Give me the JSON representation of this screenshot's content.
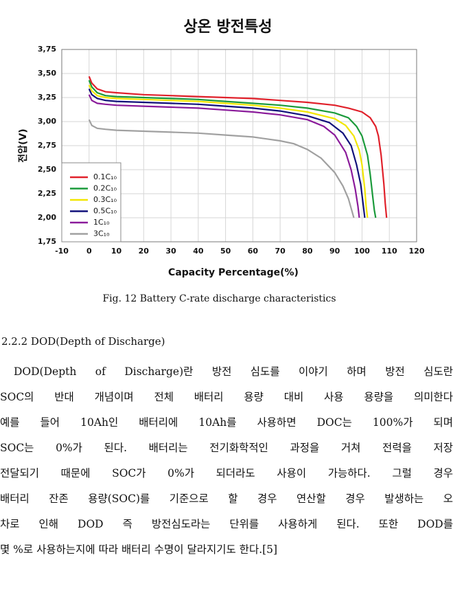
{
  "chart_data": {
    "type": "line",
    "title": "상온 방전특성",
    "y_label": "전압(V)",
    "x_label": "Capacity Percentage(%)",
    "xlim": [
      -10,
      120
    ],
    "xticks": [
      -10,
      0,
      10,
      20,
      30,
      40,
      50,
      60,
      70,
      80,
      90,
      100,
      110,
      120
    ],
    "ylim": [
      1.75,
      3.75
    ],
    "yticks": [
      {
        "value": 1.75,
        "label": "1,75"
      },
      {
        "value": 2,
        "label": "2,00"
      },
      {
        "value": 2.25,
        "label": "2,25"
      },
      {
        "value": 2.5,
        "label": "2,50"
      },
      {
        "value": 2.75,
        "label": "2,75"
      },
      {
        "value": 3,
        "label": "3,00"
      },
      {
        "value": 3.25,
        "label": "3,25"
      },
      {
        "value": 3.5,
        "label": "3,50"
      },
      {
        "value": 3.75,
        "label": "3,75"
      }
    ],
    "grid": true,
    "legend": "lower-left",
    "series": [
      {
        "name": "0.1C₁₀",
        "color": "#e0202a",
        "x": [
          0,
          1,
          3,
          6,
          10,
          20,
          30,
          40,
          50,
          60,
          70,
          80,
          90,
          95,
          100,
          103,
          105,
          106,
          107,
          108,
          108.5,
          109
        ],
        "values": [
          3.47,
          3.4,
          3.34,
          3.31,
          3.3,
          3.28,
          3.27,
          3.26,
          3.25,
          3.24,
          3.22,
          3.2,
          3.17,
          3.14,
          3.1,
          3.04,
          2.95,
          2.85,
          2.65,
          2.35,
          2.15,
          2.0
        ]
      },
      {
        "name": "0.2C₁₀",
        "color": "#1a9a3a",
        "x": [
          0,
          1,
          3,
          6,
          10,
          20,
          30,
          40,
          50,
          60,
          70,
          80,
          90,
          95,
          98,
          100,
          102,
          103,
          104,
          104.5,
          105
        ],
        "values": [
          3.43,
          3.36,
          3.3,
          3.27,
          3.26,
          3.25,
          3.24,
          3.23,
          3.21,
          3.19,
          3.17,
          3.14,
          3.09,
          3.04,
          2.95,
          2.85,
          2.65,
          2.45,
          2.2,
          2.08,
          2.0
        ]
      },
      {
        "name": "0.3C₁₀",
        "color": "#f2e600",
        "x": [
          0,
          1,
          3,
          6,
          10,
          20,
          30,
          40,
          50,
          60,
          70,
          80,
          90,
          94,
          97,
          99,
          100,
          101,
          101.5,
          102
        ],
        "values": [
          3.38,
          3.32,
          3.27,
          3.25,
          3.24,
          3.23,
          3.22,
          3.21,
          3.19,
          3.17,
          3.14,
          3.1,
          3.03,
          2.96,
          2.85,
          2.7,
          2.55,
          2.3,
          2.12,
          2.0
        ]
      },
      {
        "name": "0.5C₁₀",
        "color": "#10107a",
        "x": [
          0,
          1,
          3,
          6,
          10,
          20,
          30,
          40,
          50,
          60,
          70,
          80,
          88,
          93,
          96,
          98,
          99.5,
          100.5,
          101
        ],
        "values": [
          3.34,
          3.28,
          3.24,
          3.22,
          3.21,
          3.2,
          3.19,
          3.18,
          3.16,
          3.14,
          3.11,
          3.06,
          2.99,
          2.88,
          2.75,
          2.55,
          2.35,
          2.12,
          2.0
        ]
      },
      {
        "name": "1C₁₀",
        "color": "#8a1a9a",
        "x": [
          0,
          1,
          3,
          6,
          10,
          20,
          30,
          40,
          50,
          60,
          70,
          80,
          86,
          90,
          94,
          96,
          97.5,
          98.5,
          99
        ],
        "values": [
          3.28,
          3.22,
          3.19,
          3.18,
          3.17,
          3.16,
          3.15,
          3.14,
          3.12,
          3.1,
          3.07,
          3.02,
          2.95,
          2.86,
          2.68,
          2.5,
          2.3,
          2.12,
          2.0
        ]
      },
      {
        "name": "3C₁₀",
        "color": "#a0a0a0",
        "x": [
          0,
          1,
          3,
          6,
          10,
          20,
          30,
          40,
          50,
          60,
          70,
          75,
          80,
          85,
          90,
          93,
          95,
          96,
          97
        ],
        "values": [
          3.02,
          2.96,
          2.93,
          2.92,
          2.91,
          2.9,
          2.89,
          2.88,
          2.86,
          2.84,
          2.8,
          2.77,
          2.71,
          2.62,
          2.47,
          2.33,
          2.2,
          2.1,
          2.0
        ]
      }
    ]
  },
  "document": {
    "caption": "Fig. 12 Battery C-rate discharge characteristics",
    "heading": "2.2.2 DOD(Depth of Discharge)",
    "lines": [
      "DOD(Depth of Discharge)란 방전 심도를 이야기 하며 방전 심도란",
      "SOC의 반대 개념이며 전체 배터리 용량 대비 사용 용량을 의미한다",
      "예를 들어 10Ah인 배터리에 10Ah를 사용하면 DOC는 100%가 되며",
      "SOC는 0%가 된다. 배터리는 전기화학적인 과정을 거쳐 전력을 저장",
      "전달되기 때문에 SOC가 0%가 되더라도 사용이 가능하다. 그럴 경우",
      "배터리 잔존 용량(SOC)를 기준으로 할 경우 연산할 경우 발생하는 오",
      "차로 인해 DOD 즉 방전심도라는 단위를 사용하게 된다. 또한 DOD를",
      "몇 %로 사용하는지에 따라 배터리 수명이 달라지기도 한다.[5]"
    ]
  }
}
